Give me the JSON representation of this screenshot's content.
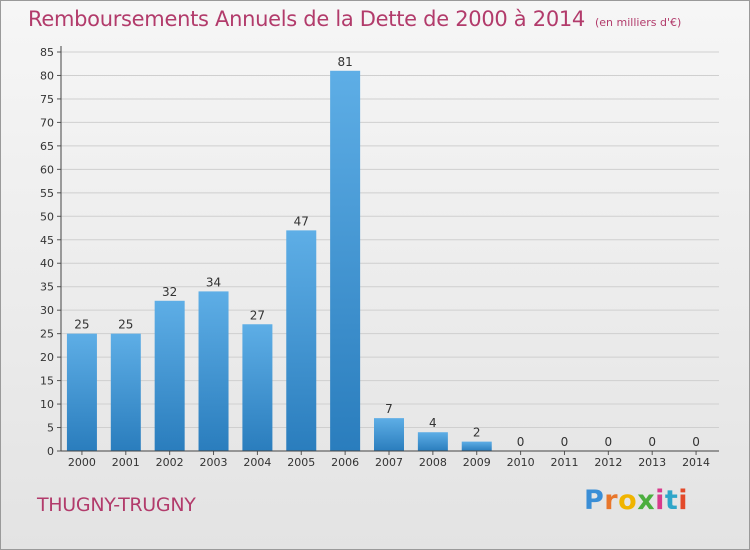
{
  "header": {
    "title": "Remboursements Annuels de la Dette de 2000 à 2014",
    "unit": "(en milliers d'€)"
  },
  "footer": {
    "commune": "THUGNY-TRUGNY",
    "brand": "Proxiti"
  },
  "colors": {
    "title": "#b23b6b",
    "bar_top": "#5eaee6",
    "bar_bottom": "#2a7dbd",
    "grid": "#cfcfcf"
  },
  "chart_data": {
    "type": "bar",
    "title": "Remboursements Annuels de la Dette de 2000 à 2014",
    "subtitle": "(en milliers d'€)",
    "xlabel": "",
    "ylabel": "",
    "categories": [
      "2000",
      "2001",
      "2002",
      "2003",
      "2004",
      "2005",
      "2006",
      "2007",
      "2008",
      "2009",
      "2010",
      "2011",
      "2012",
      "2013",
      "2014"
    ],
    "values": [
      25,
      25,
      32,
      34,
      27,
      47,
      81,
      7,
      4,
      2,
      0,
      0,
      0,
      0,
      0
    ],
    "ylim": [
      0,
      85
    ],
    "yticks": [
      0,
      5,
      10,
      15,
      20,
      25,
      30,
      35,
      40,
      45,
      50,
      55,
      60,
      65,
      70,
      75,
      80,
      85
    ],
    "grid": true,
    "data_labels": true,
    "legend": "none"
  }
}
